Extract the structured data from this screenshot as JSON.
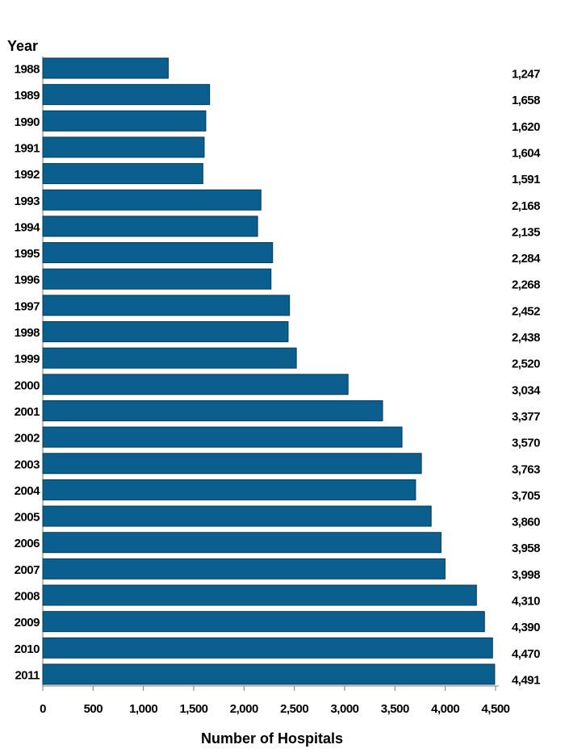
{
  "chart_data": {
    "type": "bar",
    "orientation": "horizontal",
    "title": "",
    "ylabel": "Year",
    "xlabel": "Number of Hospitals",
    "categories": [
      "1988",
      "1989",
      "1990",
      "1991",
      "1992",
      "1993",
      "1994",
      "1995",
      "1996",
      "1997",
      "1998",
      "1999",
      "2000",
      "2001",
      "2002",
      "2003",
      "2004",
      "2005",
      "2006",
      "2007",
      "2008",
      "2009",
      "2010",
      "2011"
    ],
    "values": [
      1247,
      1658,
      1620,
      1604,
      1591,
      2168,
      2135,
      2284,
      2268,
      2452,
      2438,
      2520,
      3034,
      3377,
      3570,
      3763,
      3705,
      3860,
      3958,
      3998,
      4310,
      4390,
      4470,
      4491
    ],
    "value_labels": [
      "1,247",
      "1,658",
      "1,620",
      "1,604",
      "1,591",
      "2,168",
      "2,135",
      "2,284",
      "2,268",
      "2,452",
      "2,438",
      "2,520",
      "3,034",
      "3,377",
      "3,570",
      "3,763",
      "3,705",
      "3,860",
      "3,958",
      "3,998",
      "4,310",
      "4,390",
      "4,470",
      "4,491"
    ],
    "xlim": [
      0,
      4500
    ],
    "x_ticks": [
      0,
      500,
      1000,
      1500,
      2000,
      2500,
      3000,
      3500,
      4000,
      4500
    ],
    "x_tick_labels": [
      "0",
      "500",
      "1,000",
      "1,500",
      "2,000",
      "2,500",
      "3,000",
      "3,500",
      "4,000",
      "4,500"
    ],
    "grid": false,
    "bar_color": "#0b5f8e"
  }
}
